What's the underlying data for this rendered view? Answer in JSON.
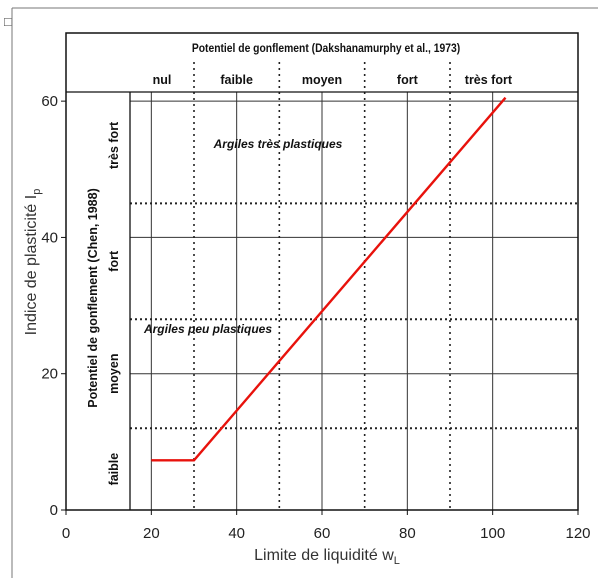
{
  "chart_data": {
    "type": "line",
    "title": "Potentiel de gonflement (Dakshanamurphy et al., 1973)",
    "xlabel": "Limite de liquidité w",
    "xlabel_sub": "L",
    "ylabel": "Indice de plasticité I",
    "ylabel_sub": "p",
    "xlim": [
      0,
      120
    ],
    "ylim": [
      0,
      70
    ],
    "x_ticks": [
      "0",
      "20",
      "40",
      "60",
      "80",
      "100",
      "120"
    ],
    "y_ticks": [
      "0",
      "20",
      "40",
      "60"
    ],
    "corner_glyph": "□",
    "grid": true,
    "series": [
      {
        "color": "#e8120c",
        "x": [
          20,
          30,
          103
        ],
        "y": [
          7.3,
          7.3,
          60.5
        ]
      }
    ],
    "liquidity_bounds": [
      30,
      50,
      70,
      90
    ],
    "plasticity_bounds": [
      12,
      28,
      45
    ],
    "top_classes": [
      "nul",
      "faible",
      "moyen",
      "fort",
      "très fort"
    ],
    "left_title": "Potentiel de gonflement (Chen, 1988)",
    "left_classes": [
      "faible",
      "moyen",
      "fort",
      "très fort"
    ],
    "annotations": [
      "Argiles très plastiques",
      "Argiles peu plastiques"
    ]
  }
}
